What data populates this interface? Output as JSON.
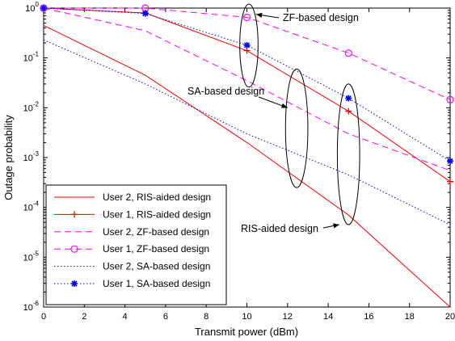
{
  "chart_data": {
    "type": "line",
    "xlabel": "Transmit power (dBm)",
    "ylabel": "Outage probability",
    "xlim": [
      0,
      20
    ],
    "ylim": [
      1e-06,
      1
    ],
    "yscale": "log",
    "grid": false,
    "x_ticks": [
      "0",
      "2",
      "4",
      "6",
      "8",
      "10",
      "12",
      "14",
      "16",
      "18",
      "20"
    ],
    "y_ticks": [
      {
        "base": "10",
        "exp": "-6"
      },
      {
        "base": "10",
        "exp": "-5"
      },
      {
        "base": "10",
        "exp": "-4"
      },
      {
        "base": "10",
        "exp": "-3"
      },
      {
        "base": "10",
        "exp": "-2"
      },
      {
        "base": "10",
        "exp": "-1"
      },
      {
        "base": "10",
        "exp": "0"
      }
    ],
    "legend_position": "bottom-left",
    "series": [
      {
        "name": "User 2, RIS-aided design",
        "color": "#ff0000",
        "line": "solid",
        "marker": "none",
        "x": [
          0,
          5,
          10,
          15,
          20
        ],
        "y": [
          0.45,
          0.045,
          0.002,
          7e-05,
          1e-06
        ]
      },
      {
        "name": "User 1, RIS-aided design",
        "color": "#ff0000",
        "line": "solid",
        "marker": "plus",
        "x": [
          0,
          5,
          10,
          15,
          20
        ],
        "y": [
          1,
          0.8,
          0.14,
          0.0085,
          0.00033
        ]
      },
      {
        "name": "User 2, ZF-based design",
        "color": "#ff00ff",
        "line": "dashed",
        "marker": "none",
        "x": [
          0,
          5,
          10,
          15,
          20
        ],
        "y": [
          1,
          0.35,
          0.035,
          0.003,
          0.00055
        ]
      },
      {
        "name": "User 1, ZF-based design",
        "color": "#ff00ff",
        "line": "dashed",
        "marker": "circle",
        "x": [
          0,
          5,
          10,
          15,
          20
        ],
        "y": [
          1,
          1,
          0.65,
          0.125,
          0.0145
        ]
      },
      {
        "name": "User 2, SA-based design",
        "color": "#0000ff",
        "line": "dotted",
        "marker": "none",
        "x": [
          0,
          5,
          10,
          15,
          20
        ],
        "y": [
          0.23,
          0.03,
          0.003,
          0.00045,
          4.5e-05
        ]
      },
      {
        "name": "User 1, SA-based design",
        "color": "#0000ff",
        "line": "dotted",
        "marker": "star",
        "x": [
          0,
          5,
          10,
          15,
          20
        ],
        "y": [
          1,
          0.78,
          0.18,
          0.0155,
          0.00085
        ]
      }
    ],
    "annotations": [
      {
        "text": "ZF-based design",
        "ellipse_center": [
          10.1,
          0.19
        ],
        "ellipse_rx": 0.45,
        "ellipse_log_span": [
          0.026,
          1.2
        ],
        "arrow_to": [
          10.45,
          0.75
        ]
      },
      {
        "text": "SA-based design",
        "ellipse_center": [
          12.45,
          0.0018
        ],
        "ellipse_rx": 0.55,
        "ellipse_log_span": [
          0.00025,
          0.06
        ],
        "arrow_to": [
          12.0,
          0.01
        ]
      },
      {
        "text": "RIS-aided design",
        "ellipse_center": [
          15.0,
          0.00012
        ],
        "ellipse_rx": 0.55,
        "ellipse_log_span": [
          4.5e-05,
          0.03
        ],
        "arrow_to": [
          14.55,
          4.5e-05
        ]
      }
    ]
  }
}
